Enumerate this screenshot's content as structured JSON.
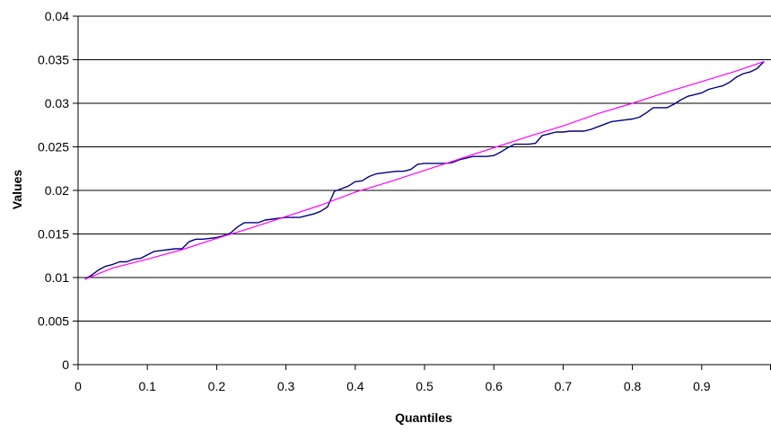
{
  "chart_data": {
    "type": "line",
    "title": "",
    "xlabel": "Quantiles",
    "ylabel": "Values",
    "xlim": [
      0,
      1
    ],
    "ylim": [
      0,
      0.04
    ],
    "x_ticks": [
      "0",
      "0.1",
      "0.2",
      "0.3",
      "0.4",
      "0.5",
      "0.6",
      "0.7",
      "0.8",
      "0.9"
    ],
    "y_ticks": [
      "0",
      "0.005",
      "0.01",
      "0.015",
      "0.02",
      "0.025",
      "0.03",
      "0.035",
      "0.04"
    ],
    "grid": "horizontal",
    "legend": "none",
    "series": [
      {
        "color": "#000080",
        "x": [
          0.01,
          0.02,
          0.03,
          0.04,
          0.05,
          0.06,
          0.07,
          0.08,
          0.09,
          0.1,
          0.11,
          0.12,
          0.13,
          0.14,
          0.15,
          0.16,
          0.17,
          0.18,
          0.19,
          0.2,
          0.21,
          0.22,
          0.23,
          0.24,
          0.25,
          0.26,
          0.27,
          0.28,
          0.29,
          0.3,
          0.31,
          0.32,
          0.33,
          0.34,
          0.35,
          0.36,
          0.37,
          0.38,
          0.39,
          0.4,
          0.41,
          0.42,
          0.43,
          0.44,
          0.45,
          0.46,
          0.47,
          0.48,
          0.49,
          0.5,
          0.51,
          0.52,
          0.53,
          0.54,
          0.55,
          0.56,
          0.57,
          0.58,
          0.59,
          0.6,
          0.61,
          0.62,
          0.63,
          0.64,
          0.65,
          0.66,
          0.67,
          0.68,
          0.69,
          0.7,
          0.71,
          0.72,
          0.73,
          0.74,
          0.75,
          0.76,
          0.77,
          0.78,
          0.79,
          0.8,
          0.81,
          0.82,
          0.83,
          0.84,
          0.85,
          0.86,
          0.87,
          0.88,
          0.89,
          0.9,
          0.91,
          0.92,
          0.93,
          0.94,
          0.95,
          0.96,
          0.97,
          0.98,
          0.99
        ],
        "values": [
          0.0098,
          0.0103,
          0.0109,
          0.0113,
          0.0115,
          0.0118,
          0.0118,
          0.0121,
          0.0122,
          0.0126,
          0.013,
          0.0131,
          0.0132,
          0.0133,
          0.0133,
          0.0141,
          0.0144,
          0.0144,
          0.0145,
          0.0146,
          0.0148,
          0.0151,
          0.0158,
          0.0163,
          0.0163,
          0.0163,
          0.0166,
          0.0167,
          0.0168,
          0.0169,
          0.0169,
          0.0169,
          0.0171,
          0.0173,
          0.0176,
          0.0181,
          0.0199,
          0.0202,
          0.0205,
          0.021,
          0.0211,
          0.0216,
          0.0219,
          0.022,
          0.0221,
          0.0222,
          0.0222,
          0.0224,
          0.023,
          0.0231,
          0.0231,
          0.0231,
          0.0231,
          0.0232,
          0.0235,
          0.0237,
          0.0239,
          0.0239,
          0.0239,
          0.024,
          0.0244,
          0.0249,
          0.0253,
          0.0253,
          0.0253,
          0.0254,
          0.0263,
          0.0265,
          0.0267,
          0.0267,
          0.0268,
          0.0268,
          0.0268,
          0.027,
          0.0273,
          0.0276,
          0.0279,
          0.028,
          0.0281,
          0.0282,
          0.0284,
          0.0289,
          0.0295,
          0.0295,
          0.0295,
          0.0299,
          0.0304,
          0.0308,
          0.031,
          0.0312,
          0.0316,
          0.0318,
          0.032,
          0.0324,
          0.033,
          0.0334,
          0.0336,
          0.034,
          0.0348
        ]
      },
      {
        "color": "#ff00ff",
        "x": [
          0.01,
          0.05,
          0.1,
          0.15,
          0.2,
          0.25,
          0.3,
          0.35,
          0.4,
          0.45,
          0.5,
          0.55,
          0.6,
          0.65,
          0.7,
          0.75,
          0.8,
          0.85,
          0.9,
          0.95,
          0.99
        ],
        "values": [
          0.0098,
          0.0111,
          0.0121,
          0.0132,
          0.0145,
          0.0157,
          0.017,
          0.0183,
          0.0198,
          0.021,
          0.0223,
          0.0236,
          0.0249,
          0.0262,
          0.0274,
          0.0288,
          0.03,
          0.0313,
          0.0325,
          0.0337,
          0.0348
        ]
      }
    ]
  }
}
